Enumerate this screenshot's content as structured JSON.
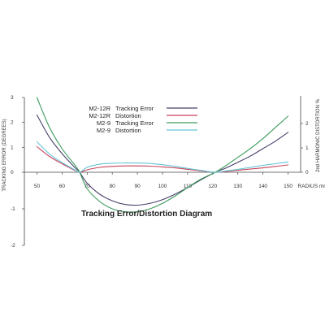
{
  "chart_data": {
    "type": "line",
    "title": "Tracking Error/Distortion Diagram",
    "xlabel": "RADIUS mm",
    "ylabel_left": "TRACKING ERROR (DEGREES)",
    "ylabel_right": "2nd HARMONIC DISTORTION %",
    "xlim": [
      45,
      155
    ],
    "ylim_left": [
      -2,
      3
    ],
    "ylim_right": [
      0,
      3
    ],
    "x_ticks": [
      "50",
      "60",
      "70",
      "80",
      "90",
      "100",
      "110",
      "120",
      "130",
      "140",
      "150"
    ],
    "y_ticks_left": [
      "3",
      "2",
      "1",
      "0",
      "-1",
      "-2"
    ],
    "y_ticks_right": [
      "2",
      "1",
      "0"
    ],
    "grid": false,
    "legend_position": "top-right",
    "series": [
      {
        "model": "M2-12R",
        "measure": "Tracking Error",
        "axis": "left",
        "color": "#4a3f6b",
        "x": [
          50,
          55,
          60,
          65,
          67,
          70,
          75,
          80,
          85,
          90,
          95,
          100,
          105,
          110,
          115,
          121,
          125,
          130,
          135,
          140,
          145,
          150
        ],
        "y": [
          2.3,
          1.4,
          0.75,
          0.2,
          0.0,
          -0.3,
          -0.6,
          -0.78,
          -0.88,
          -0.9,
          -0.85,
          -0.75,
          -0.6,
          -0.42,
          -0.22,
          0.0,
          0.16,
          0.4,
          0.65,
          0.95,
          1.25,
          1.6
        ]
      },
      {
        "model": "M2-12R",
        "measure": "Distortion",
        "axis": "right",
        "color": "#c8455a",
        "x": [
          50,
          55,
          60,
          65,
          67,
          70,
          75,
          80,
          85,
          90,
          95,
          100,
          105,
          110,
          115,
          121,
          125,
          130,
          135,
          140,
          145,
          150
        ],
        "y": [
          1.05,
          0.65,
          0.35,
          0.08,
          0.0,
          0.1,
          0.2,
          0.24,
          0.26,
          0.26,
          0.25,
          0.22,
          0.18,
          0.12,
          0.06,
          0.0,
          0.03,
          0.08,
          0.13,
          0.18,
          0.24,
          0.3
        ]
      },
      {
        "model": "M2-9",
        "measure": "Tracking Error",
        "axis": "left",
        "color": "#3a9a5c",
        "x": [
          50,
          55,
          60,
          65,
          67,
          70,
          75,
          80,
          85,
          90,
          95,
          100,
          105,
          110,
          115,
          121,
          125,
          130,
          135,
          140,
          145,
          150
        ],
        "y": [
          3.0,
          1.8,
          0.95,
          0.3,
          0.0,
          -0.45,
          -0.8,
          -1.0,
          -1.08,
          -1.08,
          -1.0,
          -0.85,
          -0.65,
          -0.42,
          -0.2,
          0.0,
          0.25,
          0.6,
          0.95,
          1.35,
          1.8,
          2.25
        ]
      },
      {
        "model": "M2-9",
        "measure": "Distortion",
        "axis": "right",
        "color": "#66c4d8",
        "x": [
          50,
          55,
          60,
          65,
          67,
          70,
          75,
          80,
          85,
          90,
          95,
          100,
          105,
          110,
          115,
          121,
          125,
          130,
          135,
          140,
          145,
          150
        ],
        "y": [
          1.25,
          0.75,
          0.4,
          0.1,
          0.0,
          0.2,
          0.33,
          0.37,
          0.38,
          0.38,
          0.36,
          0.31,
          0.24,
          0.16,
          0.08,
          0.0,
          0.05,
          0.12,
          0.2,
          0.28,
          0.35,
          0.42
        ]
      }
    ]
  }
}
